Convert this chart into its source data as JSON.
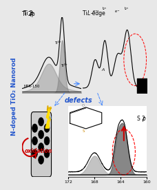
{
  "title_vertical": "N-doped TiO₂ Nanorod",
  "panel1_title": "Ti 2p",
  "panel2_title": "Ti L-edge",
  "panel3_title": "S 2p",
  "defects_label": "defects",
  "oxidation_label": "oxidation",
  "s2p_xticks": [
    172,
    168,
    164,
    160
  ],
  "background": "#f0f0f0",
  "white": "#ffffff",
  "blue_label": "#2255cc",
  "red_arrow": "#cc0000"
}
